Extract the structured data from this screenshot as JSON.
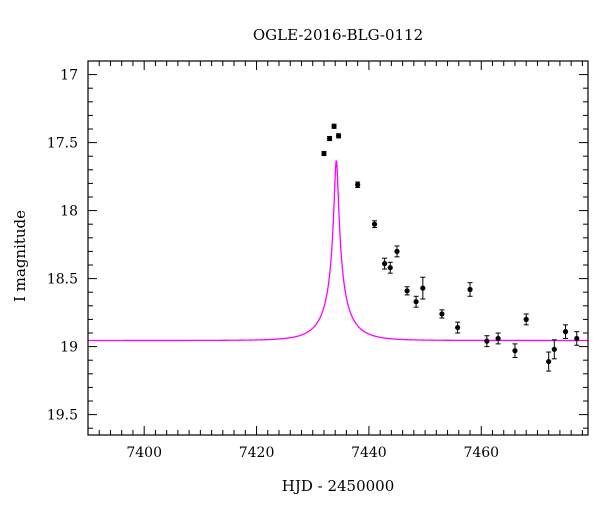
{
  "chart_data": {
    "type": "scatter",
    "title": "OGLE-2016-BLG-0112",
    "xlabel": "HJD - 2450000",
    "ylabel": "I magnitude",
    "xlim": [
      7390,
      7479
    ],
    "ylim": [
      19.65,
      16.9
    ],
    "y_inverted": true,
    "grid": false,
    "x_ticks": [
      7400,
      7420,
      7440,
      7460
    ],
    "y_ticks": [
      17,
      17.5,
      18,
      18.5,
      19,
      19.5
    ],
    "x_tick_labels": [
      "7400",
      "7420",
      "7440",
      "7460"
    ],
    "y_tick_labels": [
      "17",
      "17.5",
      "18",
      "18.5",
      "19",
      "19.5"
    ],
    "series": [
      {
        "type": "scatter_with_errorbars",
        "color": "#000000",
        "x": [
          7432.0,
          7433.0,
          7433.8,
          7434.6,
          7438.0,
          7441.0,
          7442.8,
          7443.8,
          7445.0,
          7446.8,
          7448.4,
          7449.6,
          7453.0,
          7455.8,
          7458.0,
          7461.0,
          7463.0,
          7466.0,
          7468.0,
          7472.0,
          7473.0,
          7475.0,
          7477.0
        ],
        "y": [
          17.58,
          17.47,
          17.38,
          17.45,
          17.81,
          18.1,
          18.39,
          18.42,
          18.3,
          18.59,
          18.67,
          18.57,
          18.76,
          18.86,
          18.58,
          18.96,
          18.94,
          19.03,
          18.8,
          19.11,
          19.02,
          18.89,
          18.94
        ],
        "yerr": [
          0.015,
          0.015,
          0.015,
          0.015,
          0.02,
          0.025,
          0.04,
          0.04,
          0.04,
          0.03,
          0.04,
          0.08,
          0.03,
          0.04,
          0.05,
          0.04,
          0.04,
          0.05,
          0.04,
          0.07,
          0.07,
          0.05,
          0.05
        ]
      },
      {
        "type": "model_curve",
        "color": "#ff00ff",
        "model": "pspl",
        "t0": 7434.2,
        "u0": 0.07,
        "tE": 5.0,
        "fs": 0.18,
        "base_mag": 18.955
      }
    ]
  }
}
